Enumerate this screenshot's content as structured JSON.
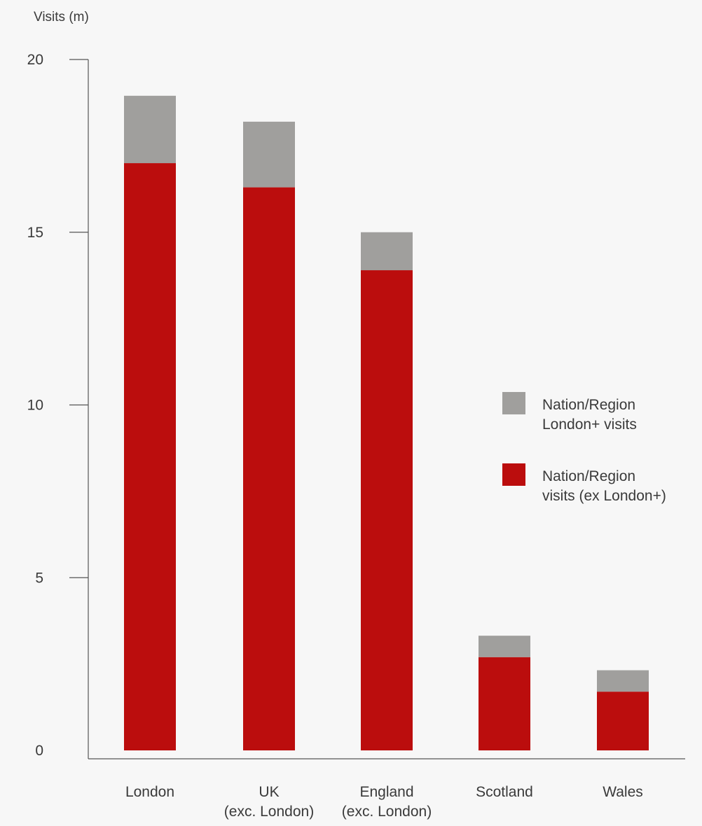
{
  "chart_data": {
    "type": "bar",
    "stacked": true,
    "ylabel": "Visits (m)",
    "ylim": [
      0,
      20
    ],
    "yticks": [
      0,
      5,
      10,
      15,
      20
    ],
    "grid": false,
    "categories": [
      [
        "London"
      ],
      [
        "UK",
        "(exc. London)"
      ],
      [
        "England",
        "(exc. London)"
      ],
      [
        "Scotland"
      ],
      [
        "Wales"
      ]
    ],
    "series": [
      {
        "name": "Nation/Region visits (ex London+)",
        "label_lines": [
          "Nation/Region",
          "visits (ex London+)"
        ],
        "color": "#bb0d0d",
        "values": [
          17.0,
          16.3,
          13.9,
          2.7,
          1.7
        ]
      },
      {
        "name": "Nation/Region London+ visits",
        "label_lines": [
          "Nation/Region",
          "London+ visits"
        ],
        "color": "#a09f9d",
        "values": [
          1.95,
          1.9,
          1.1,
          0.62,
          0.62
        ]
      }
    ],
    "legend_position": "right",
    "legend_order": [
      1,
      0
    ]
  },
  "colors": {
    "axis": "#555555",
    "text": "#3a3a3a",
    "background": "#f7f7f7"
  }
}
